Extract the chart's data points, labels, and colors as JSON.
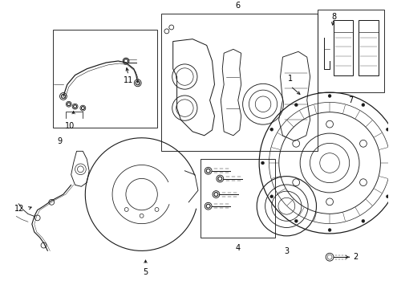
{
  "bg_color": "#ffffff",
  "line_color": "#1a1a1a",
  "label_color": "#000000",
  "fig_width": 4.9,
  "fig_height": 3.6,
  "dpi": 100
}
